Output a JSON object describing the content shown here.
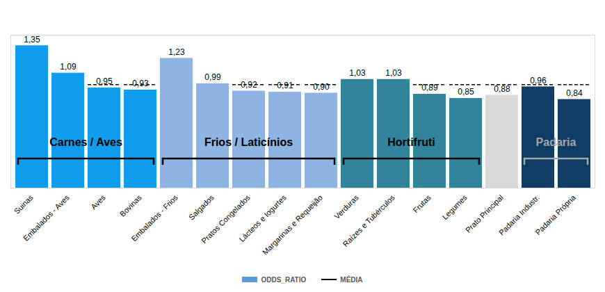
{
  "chart_data": {
    "type": "bar",
    "categories": [
      "Suinas",
      "Embalados - Aves",
      "Aves",
      "Bovinas",
      "Embalados - Frios",
      "Salgados",
      "Pratos Congelados",
      "Lácteos e Iogurtes",
      "Margarinas e Requeijão",
      "Verduras",
      "Raízes e Tubérculos",
      "Frutas",
      "Legumes",
      "Prato Principal",
      "Padaria Industr.",
      "Padaria Própria"
    ],
    "series": [
      {
        "name": "ODDS_RATIO",
        "type": "bar",
        "color": "#5b9bd5",
        "values": [
          1.35,
          1.09,
          0.95,
          0.93,
          1.23,
          0.99,
          0.92,
          0.91,
          0.9,
          1.03,
          1.03,
          0.89,
          0.85,
          0.88,
          0.96,
          0.84
        ],
        "value_labels": [
          "1,35",
          "1,09",
          "0,95",
          "0,93",
          "1,23",
          "0,99",
          "0,92",
          "0,91",
          "0,90",
          "1,03",
          "1,03",
          "0,89",
          "0,85",
          "0,88",
          "0,96",
          "0,84"
        ],
        "colors": [
          "#119ded",
          "#119ded",
          "#119ded",
          "#119ded",
          "#8db4e2",
          "#8db4e2",
          "#8db4e2",
          "#8db4e2",
          "#8db4e2",
          "#31849b",
          "#31849b",
          "#31849b",
          "#31849b",
          "#d9d9d9",
          "#0f3d66",
          "#0f3d66"
        ]
      },
      {
        "name": "MÉDIA",
        "type": "line",
        "line_style": "dashed",
        "color": "#000000",
        "values": [
          0.98,
          0.98,
          0.98,
          0.98,
          0.98,
          0.98,
          0.98,
          0.98,
          0.98,
          0.98,
          0.98,
          0.98,
          0.98,
          0.98,
          0.98,
          0.98
        ]
      }
    ],
    "annotations": [
      {
        "text": "Carnes / Aves",
        "start": "Suinas",
        "end": "Bovinas",
        "color": "#000000"
      },
      {
        "text": "Frios / Laticínios",
        "start": "Embalados - Frios",
        "end": "Margarinas e Requeijão",
        "color": "#000000"
      },
      {
        "text": "Hortifruti",
        "start": "Verduras",
        "end": "Legumes",
        "color": "#000000"
      },
      {
        "text": "Padaria",
        "start": "Padaria Industr.",
        "end": "Padaria Própria",
        "color": "#a6a6a6"
      }
    ],
    "ylim": [
      0,
      1.45
    ],
    "data_labels": true,
    "tick_labels": "x",
    "legend": "bottom"
  }
}
